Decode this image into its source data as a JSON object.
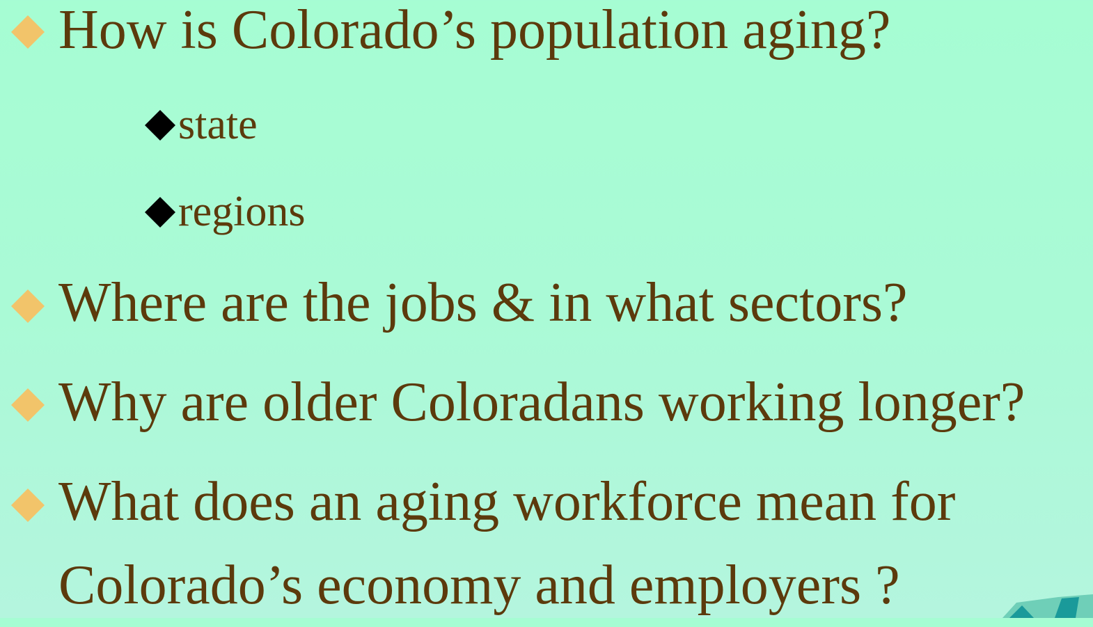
{
  "items": [
    {
      "text": "How is Colorado’s population aging?",
      "subitems": [
        "state",
        "regions"
      ]
    },
    {
      "text": "Where are the jobs & in what sectors?"
    },
    {
      "text": "Why are older Coloradans working longer?"
    },
    {
      "text": "What does an aging workforce mean for Colorado’s economy and employers ?"
    }
  ]
}
